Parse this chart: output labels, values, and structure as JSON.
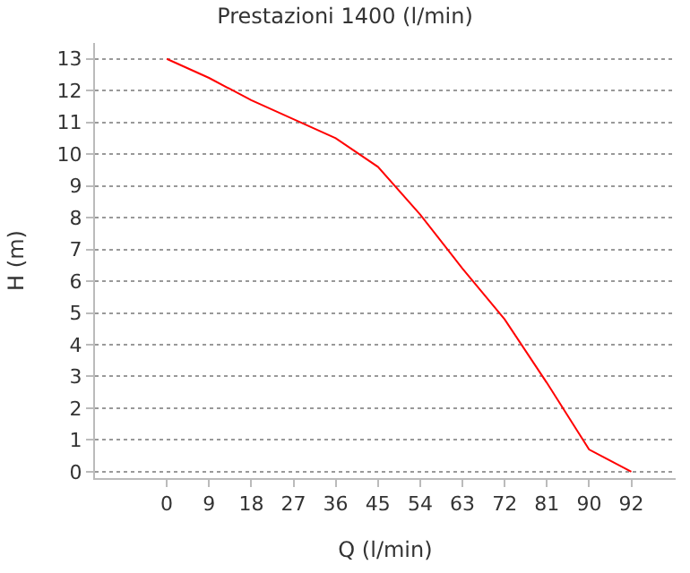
{
  "chart_data": {
    "type": "line",
    "title": "Prestazioni 1400 (l/min)",
    "xlabel": "Q (l/min)",
    "ylabel": "H (m)",
    "categories": [
      "0",
      "9",
      "18",
      "27",
      "36",
      "45",
      "54",
      "63",
      "72",
      "81",
      "90",
      "92"
    ],
    "series": [
      {
        "color": "#ff0000",
        "values": [
          13,
          12.4,
          11.7,
          11.1,
          10.5,
          9.6,
          8.1,
          6.4,
          4.8,
          2.8,
          0.7,
          0
        ]
      }
    ],
    "ylim": [
      -0.2,
      13.5
    ],
    "yticks": [
      0,
      1,
      2,
      3,
      4,
      5,
      6,
      7,
      8,
      9,
      10,
      11,
      12,
      13
    ],
    "grid": "y",
    "marker": "none",
    "line_style": "solid"
  }
}
